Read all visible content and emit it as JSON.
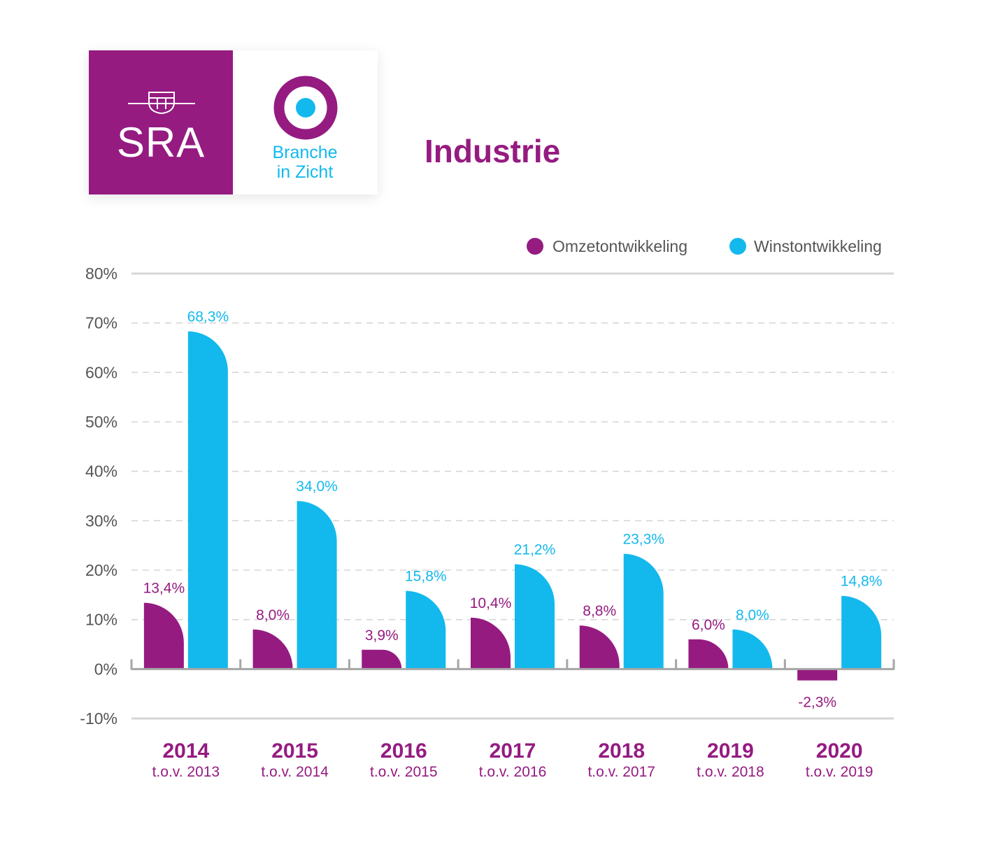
{
  "header": {
    "sra_logo_text": "SRA",
    "branche_line1": "Branche",
    "branche_line2": "in Zicht",
    "title": "Industrie"
  },
  "colors": {
    "omzet": "#951b81",
    "winst": "#13b9ed",
    "axis_text": "#555555",
    "grid": "#d0d0d0"
  },
  "chart_data": {
    "type": "bar",
    "categories": [
      "2014",
      "2015",
      "2016",
      "2017",
      "2018",
      "2019",
      "2020"
    ],
    "category_sublabels": [
      "t.o.v. 2013",
      "t.o.v. 2014",
      "t.o.v. 2015",
      "t.o.v. 2016",
      "t.o.v. 2017",
      "t.o.v. 2018",
      "t.o.v. 2019"
    ],
    "series": [
      {
        "name": "Omzetontwikkeling",
        "values": [
          13.4,
          8.0,
          3.9,
          10.4,
          8.8,
          6.0,
          -2.3
        ],
        "labels": [
          "13,4%",
          "8,0%",
          "3,9%",
          "10,4%",
          "8,8%",
          "6,0%",
          "-2,3%"
        ]
      },
      {
        "name": "Winstontwikkeling",
        "values": [
          68.3,
          34.0,
          15.8,
          21.2,
          23.3,
          8.0,
          14.8
        ],
        "labels": [
          "68,3%",
          "34,0%",
          "15,8%",
          "21,2%",
          "23,3%",
          "8,0%",
          "14,8%"
        ]
      }
    ],
    "y_ticks": [
      80,
      70,
      60,
      50,
      40,
      30,
      20,
      10,
      0,
      -10
    ],
    "y_tick_labels": [
      "80%",
      "70%",
      "60%",
      "50%",
      "40%",
      "30%",
      "20%",
      "10%",
      "0%",
      "-10%"
    ],
    "ylim": [
      -10,
      80
    ],
    "grid": true,
    "legend_position": "top-right"
  }
}
